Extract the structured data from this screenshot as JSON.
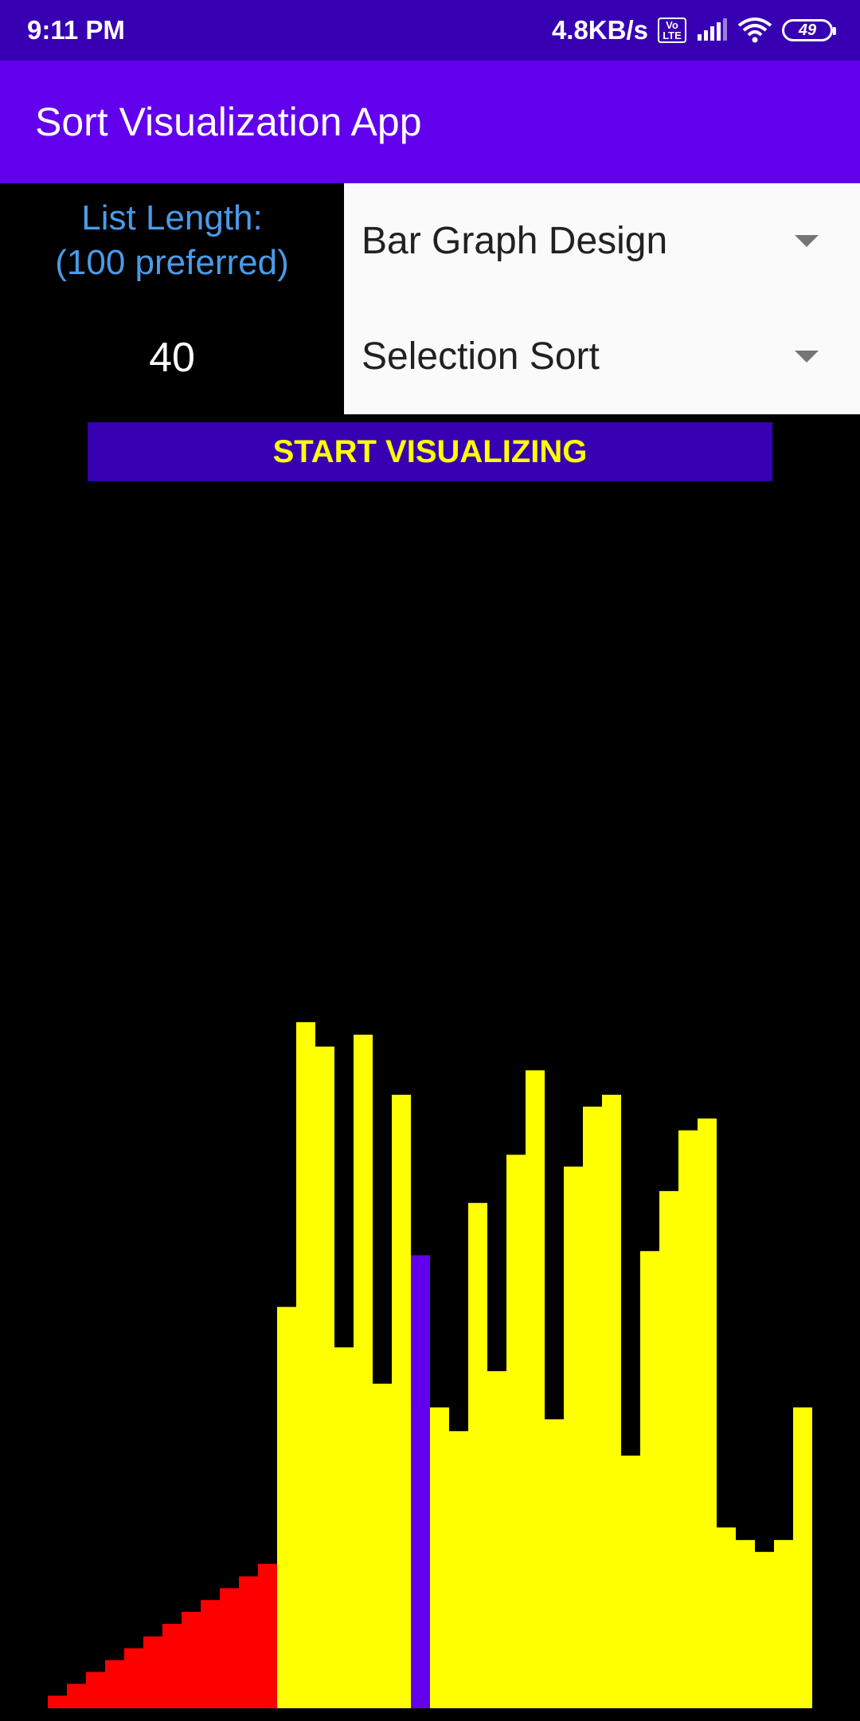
{
  "status_bar": {
    "time": "9:11 PM",
    "network_speed": "4.8KB/s",
    "volte": "Vo LTE",
    "battery": "49",
    "icons": [
      "signal-icon",
      "wifi-icon",
      "battery-icon"
    ]
  },
  "app_bar": {
    "title": "Sort Visualization App"
  },
  "list_length": {
    "label_line1": "List Length:",
    "label_line2": "(100 preferred)",
    "value": "40"
  },
  "design_spinner": {
    "selected": "Bar Graph Design"
  },
  "sort_spinner": {
    "selected": "Selection Sort"
  },
  "start_button": {
    "label": "START VISUALIZING"
  },
  "colors": {
    "sorted": "#ff0000",
    "unsorted": "#ffff00",
    "current": "#6200ee",
    "accent": "#6200ee",
    "status_bar": "#3700b3"
  },
  "chart_data": {
    "type": "bar",
    "xlabel": "",
    "ylabel": "",
    "ylim": [
      0,
      1
    ],
    "values": [
      0.018,
      0.035,
      0.052,
      0.069,
      0.086,
      0.103,
      0.121,
      0.138,
      0.155,
      0.172,
      0.189,
      0.207,
      0.575,
      0.983,
      0.948,
      0.517,
      0.965,
      0.465,
      0.879,
      0.649,
      0.431,
      0.397,
      0.724,
      0.483,
      0.793,
      0.914,
      0.414,
      0.776,
      0.862,
      0.879,
      0.362,
      0.655,
      0.741,
      0.828,
      0.845,
      0.259,
      0.241,
      0.224,
      0.241,
      0.431
    ],
    "states": [
      "sorted",
      "sorted",
      "sorted",
      "sorted",
      "sorted",
      "sorted",
      "sorted",
      "sorted",
      "sorted",
      "sorted",
      "sorted",
      "sorted",
      "unsorted",
      "unsorted",
      "unsorted",
      "unsorted",
      "unsorted",
      "unsorted",
      "unsorted",
      "current",
      "unsorted",
      "unsorted",
      "unsorted",
      "unsorted",
      "unsorted",
      "unsorted",
      "unsorted",
      "unsorted",
      "unsorted",
      "unsorted",
      "unsorted",
      "unsorted",
      "unsorted",
      "unsorted",
      "unsorted",
      "unsorted",
      "unsorted",
      "unsorted",
      "unsorted",
      "unsorted"
    ]
  }
}
